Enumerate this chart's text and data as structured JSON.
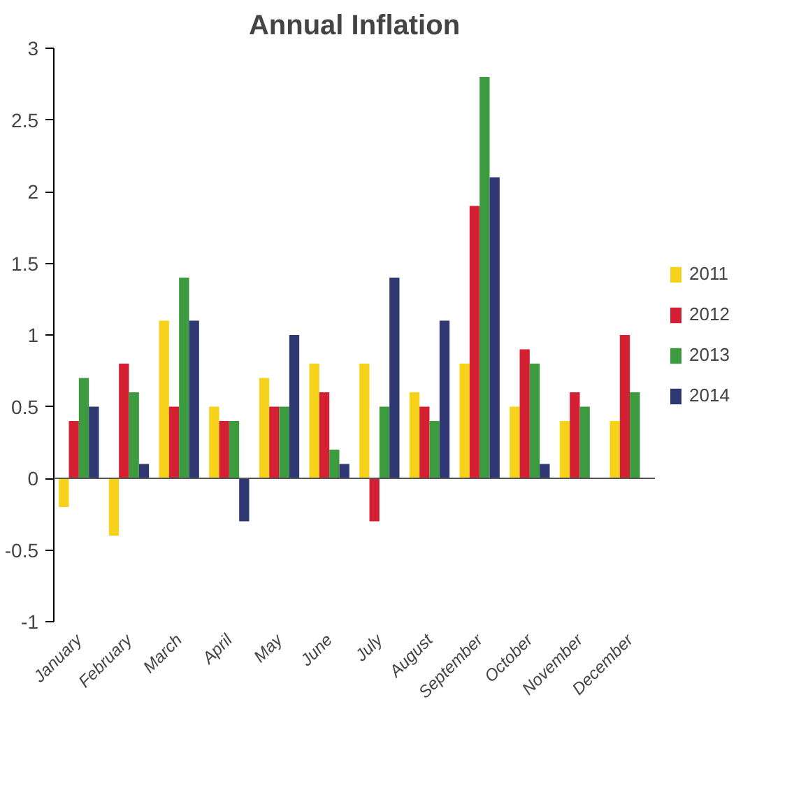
{
  "chart_data": {
    "type": "bar",
    "title": "Annual Inflation",
    "categories": [
      "January",
      "February",
      "March",
      "April",
      "May",
      "June",
      "July",
      "August",
      "September",
      "October",
      "November",
      "December"
    ],
    "series": [
      {
        "name": "2011",
        "color": "#f7d21a",
        "values": [
          -0.2,
          -0.4,
          1.1,
          0.5,
          0.7,
          0.8,
          0.8,
          0.6,
          0.8,
          0.5,
          0.4,
          0.4
        ]
      },
      {
        "name": "2012",
        "color": "#d42032",
        "values": [
          0.4,
          0.8,
          0.5,
          0.4,
          0.5,
          0.6,
          -0.3,
          0.5,
          1.9,
          0.9,
          0.6,
          1.0
        ]
      },
      {
        "name": "2013",
        "color": "#3c9a3f",
        "values": [
          0.7,
          0.6,
          1.4,
          0.4,
          0.5,
          0.2,
          0.5,
          0.4,
          2.8,
          0.8,
          0.5,
          0.6
        ]
      },
      {
        "name": "2014",
        "color": "#2f3873",
        "values": [
          0.5,
          0.1,
          1.1,
          -0.3,
          1.0,
          0.1,
          1.4,
          1.1,
          2.1,
          0.1,
          null,
          null
        ]
      }
    ],
    "ylim": [
      -1,
      3
    ],
    "yticks": [
      -1,
      -0.5,
      0,
      0.5,
      1,
      1.5,
      2,
      2.5,
      3
    ],
    "legend": "right"
  }
}
